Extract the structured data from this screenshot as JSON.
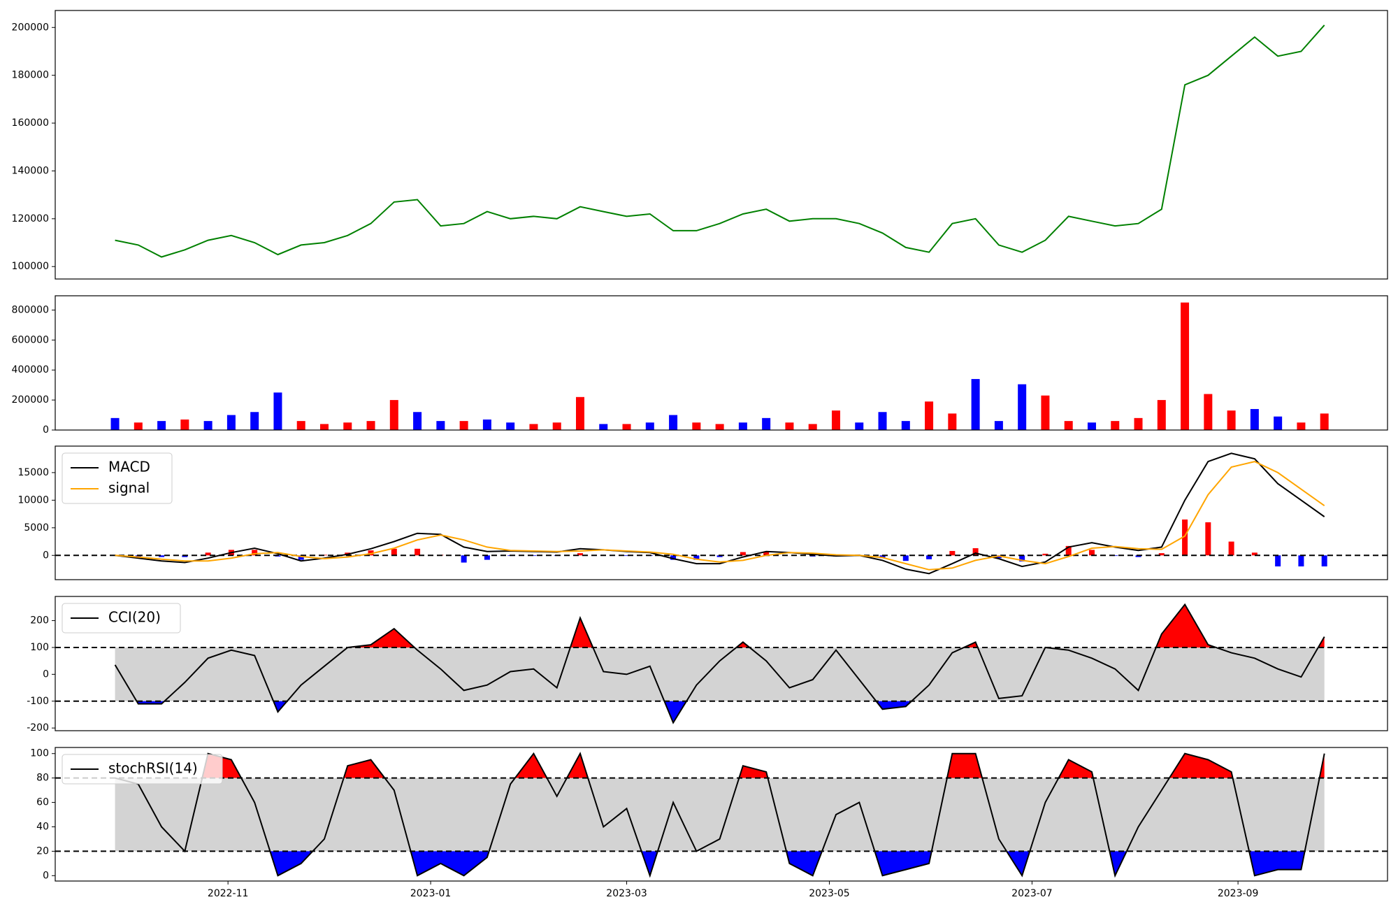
{
  "chart_data": [
    {
      "type": "line",
      "x": [
        "2022-09-28",
        "2022-10-05",
        "2022-10-12",
        "2022-10-19",
        "2022-10-26",
        "2022-11-02",
        "2022-11-09",
        "2022-11-16",
        "2022-11-23",
        "2022-11-30",
        "2022-12-07",
        "2022-12-14",
        "2022-12-21",
        "2022-12-28",
        "2023-01-04",
        "2023-01-11",
        "2023-01-18",
        "2023-01-25",
        "2023-02-01",
        "2023-02-08",
        "2023-02-15",
        "2023-02-22",
        "2023-03-01",
        "2023-03-08",
        "2023-03-15",
        "2023-03-22",
        "2023-03-29",
        "2023-04-05",
        "2023-04-12",
        "2023-04-19",
        "2023-04-26",
        "2023-05-03",
        "2023-05-10",
        "2023-05-17",
        "2023-05-24",
        "2023-05-31",
        "2023-06-07",
        "2023-06-14",
        "2023-06-21",
        "2023-06-28",
        "2023-07-05",
        "2023-07-12",
        "2023-07-19",
        "2023-07-26",
        "2023-08-02",
        "2023-08-09",
        "2023-08-16",
        "2023-08-23",
        "2023-08-30",
        "2023-09-06",
        "2023-09-13",
        "2023-09-20",
        "2023-09-27"
      ],
      "xlim": [
        "2022-09-10",
        "2023-10-16"
      ],
      "values": [
        111000,
        109000,
        104000,
        107000,
        111000,
        113000,
        110000,
        105000,
        109000,
        110000,
        113000,
        118000,
        127000,
        128000,
        117000,
        118000,
        123000,
        120000,
        121000,
        120000,
        125000,
        123000,
        121000,
        122000,
        115000,
        115000,
        118000,
        122000,
        124000,
        119000,
        120000,
        120000,
        118000,
        114000,
        108000,
        106000,
        118000,
        120000,
        109000,
        106000,
        111000,
        121000,
        119000,
        117000,
        118000,
        124000,
        176000,
        180000,
        188000,
        196000,
        188000,
        190000,
        201000
      ],
      "color": "#008000",
      "ylim": [
        94800,
        207100
      ],
      "yticks": [
        100000,
        120000,
        140000,
        160000,
        180000,
        200000
      ]
    },
    {
      "type": "bar",
      "x": [
        "2022-09-28",
        "2022-10-05",
        "2022-10-12",
        "2022-10-19",
        "2022-10-26",
        "2022-11-02",
        "2022-11-09",
        "2022-11-16",
        "2022-11-23",
        "2022-11-30",
        "2022-12-07",
        "2022-12-14",
        "2022-12-21",
        "2022-12-28",
        "2023-01-04",
        "2023-01-11",
        "2023-01-18",
        "2023-01-25",
        "2023-02-01",
        "2023-02-08",
        "2023-02-15",
        "2023-02-22",
        "2023-03-01",
        "2023-03-08",
        "2023-03-15",
        "2023-03-22",
        "2023-03-29",
        "2023-04-05",
        "2023-04-12",
        "2023-04-19",
        "2023-04-26",
        "2023-05-03",
        "2023-05-10",
        "2023-05-17",
        "2023-05-24",
        "2023-05-31",
        "2023-06-07",
        "2023-06-14",
        "2023-06-21",
        "2023-06-28",
        "2023-07-05",
        "2023-07-12",
        "2023-07-19",
        "2023-07-26",
        "2023-08-02",
        "2023-08-09",
        "2023-08-16",
        "2023-08-23",
        "2023-08-30",
        "2023-09-06",
        "2023-09-13",
        "2023-09-20",
        "2023-09-27"
      ],
      "xlim": [
        "2022-09-10",
        "2023-10-16"
      ],
      "values": [
        80000,
        50000,
        60000,
        70000,
        60000,
        100000,
        120000,
        250000,
        60000,
        40000,
        50000,
        60000,
        200000,
        120000,
        60000,
        60000,
        70000,
        50000,
        40000,
        50000,
        220000,
        40000,
        40000,
        50000,
        100000,
        50000,
        40000,
        50000,
        80000,
        50000,
        40000,
        130000,
        50000,
        120000,
        60000,
        190000,
        110000,
        340000,
        60000,
        305000,
        230000,
        60000,
        50000,
        60000,
        80000,
        200000,
        850000,
        240000,
        130000,
        140000,
        90000,
        50000,
        110000
      ],
      "colors": [
        "#0000ff",
        "#ff0000",
        "#0000ff",
        "#ff0000",
        "#0000ff",
        "#0000ff",
        "#0000ff",
        "#0000ff",
        "#ff0000",
        "#ff0000",
        "#ff0000",
        "#ff0000",
        "#ff0000",
        "#0000ff",
        "#0000ff",
        "#ff0000",
        "#0000ff",
        "#0000ff",
        "#ff0000",
        "#ff0000",
        "#ff0000",
        "#0000ff",
        "#ff0000",
        "#0000ff",
        "#0000ff",
        "#ff0000",
        "#ff0000",
        "#0000ff",
        "#0000ff",
        "#ff0000",
        "#ff0000",
        "#ff0000",
        "#0000ff",
        "#0000ff",
        "#0000ff",
        "#ff0000",
        "#ff0000",
        "#0000ff",
        "#0000ff",
        "#0000ff",
        "#ff0000",
        "#ff0000",
        "#0000ff",
        "#ff0000",
        "#ff0000",
        "#ff0000",
        "#ff0000",
        "#ff0000",
        "#ff0000",
        "#0000ff",
        "#0000ff",
        "#ff0000",
        "#ff0000"
      ],
      "ylim": [
        0,
        895000
      ],
      "yticks": [
        0,
        200000,
        400000,
        600000,
        800000
      ]
    },
    {
      "type": "line",
      "x": [
        "2022-09-28",
        "2022-10-05",
        "2022-10-12",
        "2022-10-19",
        "2022-10-26",
        "2022-11-02",
        "2022-11-09",
        "2022-11-16",
        "2022-11-23",
        "2022-11-30",
        "2022-12-07",
        "2022-12-14",
        "2022-12-21",
        "2022-12-28",
        "2023-01-04",
        "2023-01-11",
        "2023-01-18",
        "2023-01-25",
        "2023-02-01",
        "2023-02-08",
        "2023-02-15",
        "2023-02-22",
        "2023-03-01",
        "2023-03-08",
        "2023-03-15",
        "2023-03-22",
        "2023-03-29",
        "2023-04-05",
        "2023-04-12",
        "2023-04-19",
        "2023-04-26",
        "2023-05-03",
        "2023-05-10",
        "2023-05-17",
        "2023-05-24",
        "2023-05-31",
        "2023-06-07",
        "2023-06-14",
        "2023-06-21",
        "2023-06-28",
        "2023-07-05",
        "2023-07-12",
        "2023-07-19",
        "2023-07-26",
        "2023-08-02",
        "2023-08-09",
        "2023-08-16",
        "2023-08-23",
        "2023-08-30",
        "2023-09-06",
        "2023-09-13",
        "2023-09-20",
        "2023-09-27"
      ],
      "xlim": [
        "2022-09-10",
        "2023-10-16"
      ],
      "series": [
        {
          "name": "MACD",
          "color": "#000000",
          "values": [
            0,
            -500,
            -1000,
            -1300,
            -500,
            500,
            1300,
            300,
            -1000,
            -500,
            200,
            1200,
            2500,
            4000,
            3800,
            1500,
            700,
            800,
            700,
            600,
            1200,
            1000,
            700,
            500,
            -600,
            -1500,
            -1500,
            -300,
            700,
            500,
            200,
            -100,
            0,
            -900,
            -2500,
            -3300,
            -1500,
            400,
            -600,
            -2000,
            -1200,
            1500,
            2300,
            1500,
            900,
            1500,
            10000,
            17000,
            18500,
            17500,
            13000,
            10000,
            7000
          ]
        },
        {
          "name": "signal",
          "color": "#ffa500",
          "values": [
            0,
            -300,
            -700,
            -1000,
            -1000,
            -500,
            300,
            500,
            -200,
            -600,
            -300,
            300,
            1300,
            2800,
            3700,
            2800,
            1500,
            900,
            800,
            700,
            800,
            1000,
            800,
            600,
            200,
            -700,
            -1200,
            -900,
            0,
            500,
            400,
            100,
            0,
            -400,
            -1500,
            -2600,
            -2300,
            -900,
            -100,
            -900,
            -1500,
            -200,
            1300,
            1600,
            1200,
            1100,
            3500,
            11000,
            16000,
            17000,
            15000,
            12000,
            9000
          ]
        }
      ],
      "histogram": {
        "values": [
          0,
          -200,
          -300,
          -300,
          500,
          1000,
          1000,
          -200,
          -800,
          100,
          500,
          900,
          1200,
          1200,
          100,
          -1300,
          -800,
          -100,
          -100,
          -100,
          400,
          0,
          -100,
          -100,
          -800,
          -800,
          -300,
          600,
          700,
          0,
          -200,
          -200,
          0,
          -500,
          -1000,
          -700,
          800,
          1300,
          -500,
          -1100,
          300,
          1700,
          1000,
          -100,
          -300,
          400,
          6500,
          6000,
          2500,
          500,
          -2000,
          -2000,
          -2000
        ],
        "pos_color": "#ff0000",
        "neg_color": "#0000ff"
      },
      "hlines": [
        0
      ],
      "legend": "upper left",
      "ylim": [
        -4400,
        19800
      ],
      "yticks": [
        0,
        5000,
        10000,
        15000
      ]
    },
    {
      "type": "line",
      "x": [
        "2022-09-28",
        "2022-10-05",
        "2022-10-12",
        "2022-10-19",
        "2022-10-26",
        "2022-11-02",
        "2022-11-09",
        "2022-11-16",
        "2022-11-23",
        "2022-11-30",
        "2022-12-07",
        "2022-12-14",
        "2022-12-21",
        "2022-12-28",
        "2023-01-04",
        "2023-01-11",
        "2023-01-18",
        "2023-01-25",
        "2023-02-01",
        "2023-02-08",
        "2023-02-15",
        "2023-02-22",
        "2023-03-01",
        "2023-03-08",
        "2023-03-15",
        "2023-03-22",
        "2023-03-29",
        "2023-04-05",
        "2023-04-12",
        "2023-04-19",
        "2023-04-26",
        "2023-05-03",
        "2023-05-10",
        "2023-05-17",
        "2023-05-24",
        "2023-05-31",
        "2023-06-07",
        "2023-06-14",
        "2023-06-21",
        "2023-06-28",
        "2023-07-05",
        "2023-07-12",
        "2023-07-19",
        "2023-07-26",
        "2023-08-02",
        "2023-08-09",
        "2023-08-16",
        "2023-08-23",
        "2023-08-30",
        "2023-09-06",
        "2023-09-13",
        "2023-09-20",
        "2023-09-27"
      ],
      "xlim": [
        "2022-09-10",
        "2023-10-16"
      ],
      "series": [
        {
          "name": "CCI(20)",
          "color": "#000000",
          "values": [
            35,
            -110,
            -110,
            -30,
            60,
            90,
            70,
            -140,
            -40,
            30,
            100,
            110,
            170,
            90,
            20,
            -60,
            -40,
            10,
            20,
            -50,
            210,
            10,
            0,
            30,
            -180,
            -40,
            50,
            120,
            50,
            -50,
            -20,
            90,
            -20,
            -130,
            -120,
            -40,
            80,
            120,
            -90,
            -80,
            100,
            90,
            60,
            20,
            -60,
            150,
            260,
            110,
            80,
            60,
            20,
            -10,
            140
          ]
        }
      ],
      "hlines": [
        -100,
        100
      ],
      "band_color": "#d3d3d3",
      "fill_above_color": "#ff0000",
      "fill_below_color": "#0000ff",
      "legend": "upper left",
      "ylim": [
        -210,
        290
      ],
      "yticks": [
        -200,
        -100,
        0,
        100,
        200
      ]
    },
    {
      "type": "line",
      "x": [
        "2022-09-28",
        "2022-10-05",
        "2022-10-12",
        "2022-10-19",
        "2022-10-26",
        "2022-11-02",
        "2022-11-09",
        "2022-11-16",
        "2022-11-23",
        "2022-11-30",
        "2022-12-07",
        "2022-12-14",
        "2022-12-21",
        "2022-12-28",
        "2023-01-04",
        "2023-01-11",
        "2023-01-18",
        "2023-01-25",
        "2023-02-01",
        "2023-02-08",
        "2023-02-15",
        "2023-02-22",
        "2023-03-01",
        "2023-03-08",
        "2023-03-15",
        "2023-03-22",
        "2023-03-29",
        "2023-04-05",
        "2023-04-12",
        "2023-04-19",
        "2023-04-26",
        "2023-05-03",
        "2023-05-10",
        "2023-05-17",
        "2023-05-24",
        "2023-05-31",
        "2023-06-07",
        "2023-06-14",
        "2023-06-21",
        "2023-06-28",
        "2023-07-05",
        "2023-07-12",
        "2023-07-19",
        "2023-07-26",
        "2023-08-02",
        "2023-08-09",
        "2023-08-16",
        "2023-08-23",
        "2023-08-30",
        "2023-09-06",
        "2023-09-13",
        "2023-09-20",
        "2023-09-27"
      ],
      "xlim": [
        "2022-09-10",
        "2023-10-16"
      ],
      "series": [
        {
          "name": "stochRSI(14)",
          "color": "#000000",
          "values": [
            80,
            75,
            40,
            20,
            100,
            95,
            60,
            0,
            10,
            30,
            90,
            95,
            70,
            0,
            10,
            0,
            15,
            75,
            100,
            65,
            100,
            40,
            55,
            0,
            60,
            20,
            30,
            90,
            85,
            10,
            0,
            50,
            60,
            0,
            5,
            10,
            100,
            100,
            30,
            0,
            60,
            95,
            85,
            0,
            40,
            70,
            100,
            95,
            85,
            0,
            5,
            5,
            100
          ]
        }
      ],
      "hlines": [
        20,
        80
      ],
      "band_color": "#d3d3d3",
      "fill_above_color": "#ff0000",
      "fill_below_color": "#0000ff",
      "legend": "upper left",
      "ylim": [
        -4.4,
        105
      ],
      "yticks": [
        0,
        20,
        40,
        60,
        80,
        100
      ],
      "xticks": [
        {
          "value": "2022-11-01",
          "label": "2022-11"
        },
        {
          "value": "2023-01-01",
          "label": "2023-01"
        },
        {
          "value": "2023-03-01",
          "label": "2023-03"
        },
        {
          "value": "2023-05-01",
          "label": "2023-05"
        },
        {
          "value": "2023-07-01",
          "label": "2023-07"
        },
        {
          "value": "2023-09-01",
          "label": "2023-09"
        }
      ]
    }
  ]
}
